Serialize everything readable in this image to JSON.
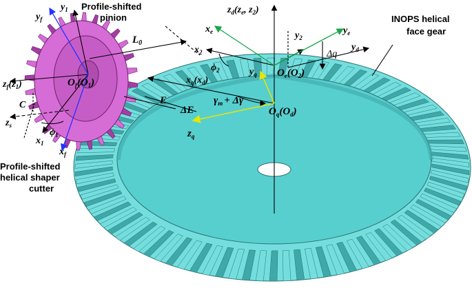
{
  "labels": {
    "pinion_title_1": "Profile-shifted",
    "pinion_title_2": "pinion",
    "gear_title_1": "INOPS helical",
    "gear_title_2": "face gear",
    "cutter_title_1": "Profile-shifted",
    "cutter_title_2": "helical shaper",
    "cutter_title_3": "cutter",
    "y1": "y",
    "y1_sub": "1",
    "yf": "y",
    "yf_sub": "f",
    "L0": "L",
    "L0_sub": "0",
    "zd_text": "z",
    "zd_sub": "d",
    "zd_paren": "(z",
    "ze_sub": "e",
    "z2_comma": ", z",
    "z2_sub": "2",
    "zd_close": ")",
    "xe": "x",
    "xe_sub": "e",
    "y2": "y",
    "y2_sub": "2",
    "ye": "y",
    "ye_sub": "e",
    "yd": "y",
    "yd_sub": "d",
    "dq": "Δq",
    "x2": "x",
    "x2_sub": "2",
    "phi2": "ϕ",
    "phi2_sub": "2",
    "yq": "y",
    "yq_sub": "q",
    "xq": "x",
    "xq_sub": "q",
    "xd": "(x",
    "xd_sub": "d",
    "xd_close": ")",
    "Oe": "O",
    "Oe_sub": "e",
    "O2": "(O",
    "O2_sub": "2",
    "O2_close": ")",
    "Oq": "O",
    "Oq_sub": "q",
    "Od": "(O",
    "Od_sub": "d",
    "Od_close": ")",
    "E": "E",
    "dE": "ΔE",
    "gamma": "γ",
    "gamma_sub": "m",
    "gamma_rest": "+ Δγ",
    "zq": "z",
    "zq_sub": "q",
    "zf": "z",
    "zf_sub": "f",
    "z1": "(z",
    "z1_sub": "1",
    "z1_close": ")",
    "Of": "O",
    "Of_sub": "f",
    "O1": "(O",
    "O1_sub": "1",
    "O1_close": ")",
    "C": "C",
    "zs": "z",
    "zs_sub": "s",
    "phi1": "ϕ",
    "phi1_sub": "1",
    "x1": "x",
    "x1_sub": "1",
    "xf": "x",
    "xf_sub": "f"
  },
  "colors": {
    "gear_face": "#58cfcf",
    "gear_teeth": "#74dede",
    "gear_teeth_dark": "#3fa8a8",
    "pinion_body": "#d66cd6",
    "pinion_dark": "#a23fa2",
    "axis_green": "#1aa64a",
    "axis_blue": "#2233ff",
    "axis_yellow": "#e6e600"
  }
}
